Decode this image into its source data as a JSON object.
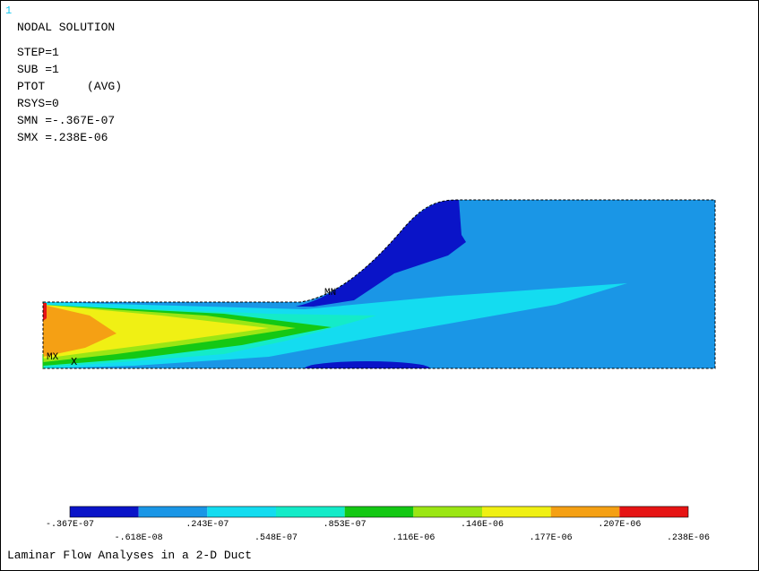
{
  "window_number": "1",
  "header": [
    "NODAL SOLUTION",
    "STEP=1",
    "SUB =1",
    "PTOT      (AVG)",
    "RSYS=0",
    "SMN =-.367E-07",
    "SMX =.238E-06"
  ],
  "markers": {
    "min": "MN",
    "max": "MX",
    "axis": "X"
  },
  "legend": {
    "colors": [
      "#0a14c8",
      "#1a96e6",
      "#14dcf0",
      "#14ebc8",
      "#14c814",
      "#9be614",
      "#f0f014",
      "#f5a014",
      "#e61414"
    ],
    "labels": [
      "-.367E-07",
      "-.618E-08",
      ".243E-07",
      ".548E-07",
      ".853E-07",
      ".116E-06",
      ".146E-06",
      ".177E-06",
      ".207E-06",
      ".238E-06"
    ]
  },
  "title": "Laminar Flow Analyses in a 2-D Duct"
}
